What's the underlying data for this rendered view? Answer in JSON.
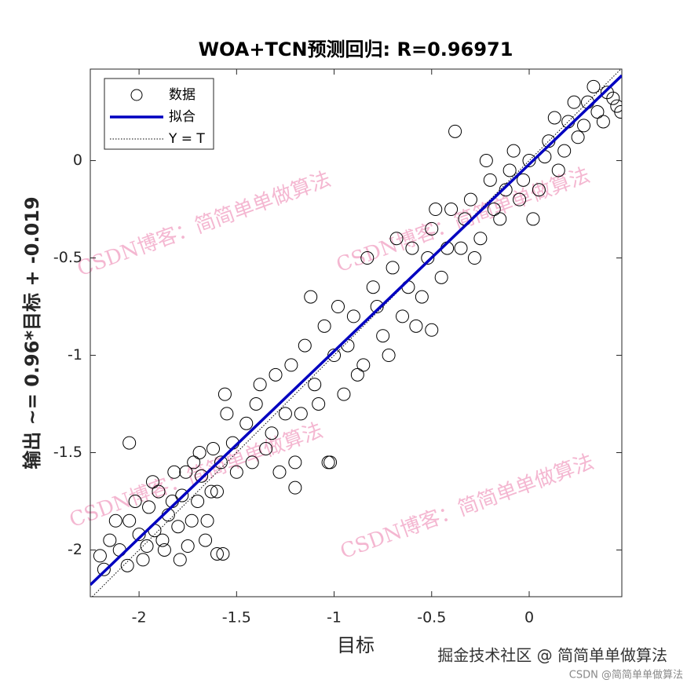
{
  "chart_data": {
    "type": "scatter",
    "title": "WOA+TCN预测回归: R=0.96971",
    "xlabel": "目标",
    "ylabel": "输出 ~= 0.96*目标 + -0.019",
    "xlim": [
      -2.25,
      0.475
    ],
    "ylim": [
      -2.24,
      0.47
    ],
    "xticks": [
      -2,
      -1.5,
      -1,
      -0.5,
      0
    ],
    "yticks": [
      -2,
      -1.5,
      -1,
      -0.5,
      0
    ],
    "legend": {
      "position": "upper left",
      "entries": [
        "数据",
        "拟合",
        "Y = T"
      ]
    },
    "fit": {
      "slope": 0.96,
      "intercept": -0.019,
      "color": "#0000c0"
    },
    "series": [
      {
        "name": "数据",
        "color": "#000000",
        "x": [
          -2.2,
          -2.15,
          -2.1,
          -2.05,
          -2.0,
          -1.98,
          -1.95,
          -1.92,
          -1.9,
          -1.88,
          -1.85,
          -1.82,
          -1.8,
          -1.78,
          -1.75,
          -1.72,
          -1.7,
          -1.68,
          -1.65,
          -1.62,
          -1.6,
          -1.58,
          -1.55,
          -1.5,
          -1.45,
          -1.4,
          -1.35,
          -1.3,
          -1.25,
          -1.2,
          -1.15,
          -1.1,
          -1.05,
          -1.0,
          -0.95,
          -0.9,
          -0.85,
          -0.8,
          -0.75,
          -0.7,
          -0.65,
          -0.6,
          -0.55,
          -0.5,
          -0.45,
          -0.4,
          -0.35,
          -0.3,
          -0.25,
          -0.2,
          -0.15,
          -0.1,
          -0.05,
          0,
          0.05,
          0.1,
          0.15,
          0.2,
          0.25,
          0.3,
          0.35,
          0.4,
          0.45,
          -2.18,
          -2.12,
          -2.06,
          -2.02,
          -1.96,
          -1.93,
          -1.87,
          -1.83,
          -1.79,
          -1.76,
          -1.73,
          -1.69,
          -1.66,
          -1.63,
          -1.57,
          -1.56,
          -1.52,
          -1.42,
          -1.38,
          -1.32,
          -1.28,
          -1.22,
          -1.17,
          -1.12,
          -1.08,
          -1.03,
          -0.98,
          -0.93,
          -0.88,
          -0.83,
          -0.78,
          -0.72,
          -0.68,
          -0.62,
          -0.58,
          -0.52,
          -0.48,
          -0.42,
          -0.38,
          -0.33,
          -0.28,
          -0.22,
          -0.18,
          -0.12,
          -0.08,
          -0.03,
          0.02,
          0.08,
          0.13,
          0.18,
          0.23,
          0.28,
          0.33,
          0.38,
          0.43,
          0.47,
          -2.05,
          -1.02,
          -1.2,
          -0.5,
          -1.6
        ],
        "y": [
          -2.03,
          -1.95,
          -2.0,
          -1.85,
          -1.92,
          -2.05,
          -1.78,
          -1.9,
          -1.7,
          -1.95,
          -1.82,
          -1.6,
          -1.88,
          -1.72,
          -1.98,
          -1.55,
          -1.75,
          -1.62,
          -1.85,
          -1.48,
          -1.7,
          -1.55,
          -1.3,
          -1.6,
          -1.35,
          -1.25,
          -1.48,
          -1.1,
          -1.3,
          -1.55,
          -0.95,
          -1.15,
          -0.85,
          -1.0,
          -1.2,
          -0.8,
          -1.05,
          -0.65,
          -0.9,
          -0.55,
          -0.8,
          -0.45,
          -0.7,
          -0.35,
          -0.6,
          -0.25,
          -0.45,
          -0.2,
          -0.4,
          -0.1,
          -0.3,
          -0.05,
          -0.2,
          0.0,
          -0.15,
          0.1,
          -0.05,
          0.2,
          0.12,
          0.3,
          0.25,
          0.35,
          0.28,
          -2.1,
          -1.85,
          -2.08,
          -1.75,
          -1.98,
          -1.65,
          -2.0,
          -1.75,
          -2.05,
          -1.6,
          -1.85,
          -1.5,
          -1.95,
          -1.7,
          -2.02,
          -1.2,
          -1.45,
          -1.55,
          -1.15,
          -1.4,
          -1.6,
          -1.05,
          -1.3,
          -0.7,
          -1.25,
          -1.55,
          -0.75,
          -0.95,
          -1.1,
          -0.5,
          -0.75,
          -1.0,
          -0.4,
          -0.65,
          -0.85,
          -0.5,
          -0.25,
          -0.45,
          0.15,
          -0.3,
          -0.5,
          0.0,
          -0.25,
          -0.15,
          0.05,
          -0.1,
          -0.3,
          0.02,
          0.22,
          0.05,
          0.3,
          0.18,
          0.38,
          0.2,
          0.32,
          0.25,
          -1.45,
          -1.55,
          -1.68,
          -0.87,
          -2.02
        ]
      }
    ]
  },
  "watermarks": [
    "CSDN博客：简简单单做算法",
    "CSDN博客：简简单单做算法",
    "CSDN博客：简简单单做算法",
    "CSDN博客：简简单单做算法"
  ],
  "footer": {
    "main": "掘金技术社区 @ 简简单单做算法",
    "sub": "CSDN @简简单单做算法"
  }
}
